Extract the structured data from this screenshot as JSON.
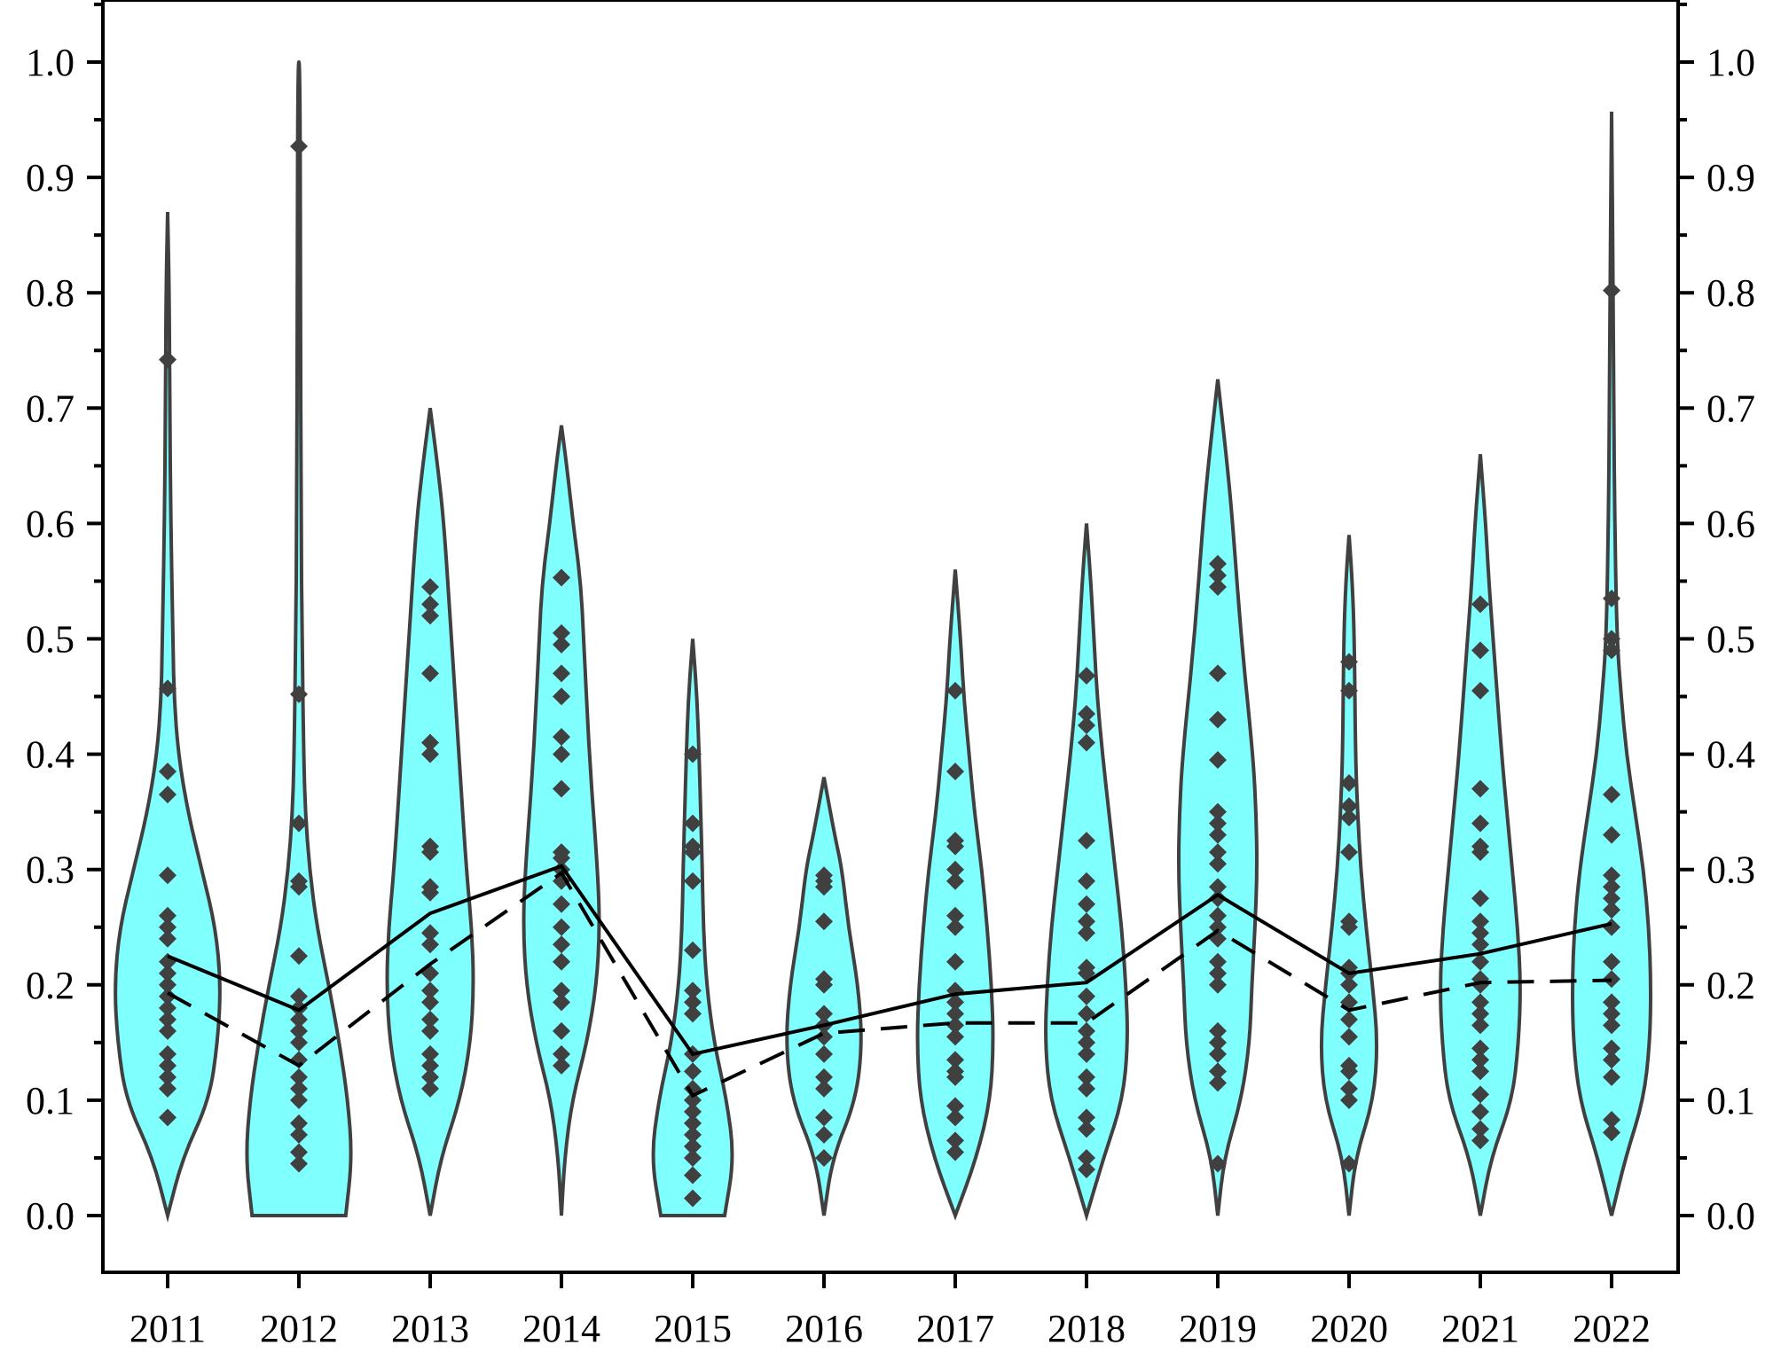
{
  "chart_data": {
    "type": "violin",
    "title": "",
    "xlabel": "",
    "ylabel": "",
    "ylim": [
      -0.05,
      1.05
    ],
    "y_ticks": [
      "0.0",
      "0.1",
      "0.2",
      "0.3",
      "0.4",
      "0.5",
      "0.6",
      "0.7",
      "0.8",
      "0.9",
      "1.0"
    ],
    "y_tick_values": [
      0.0,
      0.1,
      0.2,
      0.3,
      0.4,
      0.5,
      0.6,
      0.7,
      0.8,
      0.9,
      1.0
    ],
    "categories": [
      "2011",
      "2012",
      "2013",
      "2014",
      "2015",
      "2016",
      "2017",
      "2018",
      "2019",
      "2020",
      "2021",
      "2022"
    ],
    "violin_fill": "#80ffff",
    "violin_edge": "#404040",
    "point_color": "#404040",
    "violins": [
      {
        "year": "2011",
        "max": 0.87,
        "profile": [
          [
            0,
            0
          ],
          [
            0.05,
            0.14
          ],
          [
            0.1,
            0.39
          ],
          [
            0.15,
            0.47
          ],
          [
            0.2,
            0.5
          ],
          [
            0.25,
            0.45
          ],
          [
            0.3,
            0.32
          ],
          [
            0.35,
            0.19
          ],
          [
            0.4,
            0.1
          ],
          [
            0.45,
            0.06
          ],
          [
            0.5,
            0.05
          ],
          [
            0.6,
            0.03
          ],
          [
            0.7,
            0.02
          ],
          [
            0.8,
            0.015
          ],
          [
            0.87,
            0
          ]
        ],
        "points": [
          0.085,
          0.11,
          0.12,
          0.13,
          0.14,
          0.16,
          0.17,
          0.18,
          0.19,
          0.2,
          0.21,
          0.22,
          0.24,
          0.25,
          0.26,
          0.295,
          0.365,
          0.385,
          0.457,
          0.742
        ]
      },
      {
        "year": "2012",
        "max": 1.0,
        "profile": [
          [
            0,
            0.44
          ],
          [
            0.05,
            0.5
          ],
          [
            0.1,
            0.46
          ],
          [
            0.15,
            0.38
          ],
          [
            0.2,
            0.28
          ],
          [
            0.25,
            0.17
          ],
          [
            0.3,
            0.1
          ],
          [
            0.35,
            0.06
          ],
          [
            0.4,
            0.045
          ],
          [
            0.5,
            0.03
          ],
          [
            0.6,
            0.02
          ],
          [
            0.8,
            0.015
          ],
          [
            1.0,
            0.01
          ]
        ],
        "points": [
          0.045,
          0.055,
          0.07,
          0.08,
          0.1,
          0.11,
          0.12,
          0.135,
          0.15,
          0.16,
          0.17,
          0.18,
          0.19,
          0.225,
          0.285,
          0.29,
          0.34,
          0.452,
          0.927
        ]
      },
      {
        "year": "2013",
        "max": 0.7,
        "profile": [
          [
            0,
            0
          ],
          [
            0.05,
            0.1
          ],
          [
            0.1,
            0.28
          ],
          [
            0.15,
            0.38
          ],
          [
            0.2,
            0.41
          ],
          [
            0.25,
            0.39
          ],
          [
            0.3,
            0.34
          ],
          [
            0.4,
            0.27
          ],
          [
            0.5,
            0.2
          ],
          [
            0.6,
            0.13
          ],
          [
            0.65,
            0.07
          ],
          [
            0.7,
            0
          ]
        ],
        "points": [
          0.11,
          0.12,
          0.13,
          0.14,
          0.16,
          0.17,
          0.185,
          0.195,
          0.21,
          0.235,
          0.245,
          0.28,
          0.285,
          0.315,
          0.32,
          0.4,
          0.41,
          0.47,
          0.52,
          0.53,
          0.545
        ]
      },
      {
        "year": "2014",
        "max": 0.685,
        "profile": [
          [
            0,
            0
          ],
          [
            0.05,
            0.03
          ],
          [
            0.1,
            0.1
          ],
          [
            0.15,
            0.24
          ],
          [
            0.2,
            0.33
          ],
          [
            0.25,
            0.36
          ],
          [
            0.3,
            0.34
          ],
          [
            0.4,
            0.26
          ],
          [
            0.5,
            0.21
          ],
          [
            0.55,
            0.18
          ],
          [
            0.6,
            0.11
          ],
          [
            0.65,
            0.05
          ],
          [
            0.685,
            0
          ]
        ],
        "points": [
          0.13,
          0.14,
          0.16,
          0.185,
          0.195,
          0.22,
          0.235,
          0.25,
          0.27,
          0.29,
          0.3,
          0.31,
          0.315,
          0.37,
          0.4,
          0.415,
          0.45,
          0.47,
          0.495,
          0.505,
          0.553
        ]
      },
      {
        "year": "2015",
        "max": 0.5,
        "profile": [
          [
            0,
            0.3
          ],
          [
            0.05,
            0.39
          ],
          [
            0.1,
            0.32
          ],
          [
            0.15,
            0.2
          ],
          [
            0.2,
            0.13
          ],
          [
            0.25,
            0.1
          ],
          [
            0.3,
            0.09
          ],
          [
            0.35,
            0.075
          ],
          [
            0.4,
            0.06
          ],
          [
            0.45,
            0.04
          ],
          [
            0.5,
            0
          ]
        ],
        "points": [
          0.015,
          0.035,
          0.05,
          0.06,
          0.07,
          0.08,
          0.09,
          0.1,
          0.11,
          0.125,
          0.14,
          0.175,
          0.185,
          0.195,
          0.23,
          0.29,
          0.315,
          0.32,
          0.34,
          0.4
        ]
      },
      {
        "year": "2016",
        "max": 0.38,
        "profile": [
          [
            0,
            0
          ],
          [
            0.05,
            0.08
          ],
          [
            0.1,
            0.3
          ],
          [
            0.15,
            0.36
          ],
          [
            0.2,
            0.32
          ],
          [
            0.25,
            0.23
          ],
          [
            0.3,
            0.17
          ],
          [
            0.33,
            0.1
          ],
          [
            0.38,
            0
          ]
        ],
        "points": [
          0.05,
          0.07,
          0.085,
          0.11,
          0.12,
          0.14,
          0.155,
          0.165,
          0.175,
          0.2,
          0.205,
          0.255,
          0.285,
          0.29,
          0.295
        ]
      },
      {
        "year": "2017",
        "max": 0.56,
        "profile": [
          [
            0,
            0
          ],
          [
            0.05,
            0.2
          ],
          [
            0.1,
            0.33
          ],
          [
            0.15,
            0.36
          ],
          [
            0.2,
            0.34
          ],
          [
            0.25,
            0.3
          ],
          [
            0.3,
            0.25
          ],
          [
            0.35,
            0.18
          ],
          [
            0.4,
            0.13
          ],
          [
            0.45,
            0.08
          ],
          [
            0.5,
            0.05
          ],
          [
            0.56,
            0
          ]
        ],
        "points": [
          0.055,
          0.065,
          0.085,
          0.095,
          0.12,
          0.125,
          0.135,
          0.155,
          0.165,
          0.175,
          0.185,
          0.195,
          0.22,
          0.25,
          0.26,
          0.29,
          0.3,
          0.32,
          0.325,
          0.385,
          0.455
        ]
      },
      {
        "year": "2018",
        "max": 0.6,
        "profile": [
          [
            0,
            0
          ],
          [
            0.05,
            0.16
          ],
          [
            0.1,
            0.34
          ],
          [
            0.15,
            0.39
          ],
          [
            0.2,
            0.37
          ],
          [
            0.25,
            0.33
          ],
          [
            0.3,
            0.27
          ],
          [
            0.35,
            0.21
          ],
          [
            0.4,
            0.15
          ],
          [
            0.45,
            0.1
          ],
          [
            0.5,
            0.07
          ],
          [
            0.55,
            0.04
          ],
          [
            0.6,
            0
          ]
        ],
        "points": [
          0.04,
          0.05,
          0.075,
          0.085,
          0.11,
          0.12,
          0.14,
          0.15,
          0.16,
          0.175,
          0.19,
          0.21,
          0.215,
          0.245,
          0.255,
          0.27,
          0.29,
          0.325,
          0.41,
          0.425,
          0.435,
          0.468
        ]
      },
      {
        "year": "2019",
        "max": 0.725,
        "profile": [
          [
            0,
            0
          ],
          [
            0.05,
            0.06
          ],
          [
            0.1,
            0.22
          ],
          [
            0.15,
            0.3
          ],
          [
            0.2,
            0.32
          ],
          [
            0.25,
            0.35
          ],
          [
            0.3,
            0.37
          ],
          [
            0.35,
            0.36
          ],
          [
            0.4,
            0.33
          ],
          [
            0.5,
            0.22
          ],
          [
            0.6,
            0.14
          ],
          [
            0.65,
            0.09
          ],
          [
            0.725,
            0
          ]
        ],
        "points": [
          0.045,
          0.115,
          0.125,
          0.14,
          0.15,
          0.16,
          0.2,
          0.21,
          0.22,
          0.24,
          0.25,
          0.26,
          0.275,
          0.285,
          0.305,
          0.315,
          0.33,
          0.34,
          0.35,
          0.395,
          0.43,
          0.47,
          0.545,
          0.555,
          0.565
        ]
      },
      {
        "year": "2020",
        "max": 0.59,
        "profile": [
          [
            0,
            0
          ],
          [
            0.05,
            0.06
          ],
          [
            0.1,
            0.23
          ],
          [
            0.15,
            0.27
          ],
          [
            0.2,
            0.22
          ],
          [
            0.25,
            0.16
          ],
          [
            0.3,
            0.11
          ],
          [
            0.35,
            0.08
          ],
          [
            0.4,
            0.06
          ],
          [
            0.5,
            0.05
          ],
          [
            0.55,
            0.03
          ],
          [
            0.59,
            0
          ]
        ],
        "points": [
          0.045,
          0.1,
          0.11,
          0.125,
          0.13,
          0.155,
          0.17,
          0.185,
          0.2,
          0.21,
          0.215,
          0.25,
          0.255,
          0.315,
          0.345,
          0.355,
          0.375,
          0.455,
          0.48
        ]
      },
      {
        "year": "2021",
        "max": 0.66,
        "profile": [
          [
            0,
            0
          ],
          [
            0.05,
            0.1
          ],
          [
            0.1,
            0.3
          ],
          [
            0.15,
            0.36
          ],
          [
            0.2,
            0.38
          ],
          [
            0.25,
            0.35
          ],
          [
            0.3,
            0.3
          ],
          [
            0.35,
            0.25
          ],
          [
            0.4,
            0.2
          ],
          [
            0.5,
            0.12
          ],
          [
            0.55,
            0.08
          ],
          [
            0.6,
            0.05
          ],
          [
            0.66,
            0
          ]
        ],
        "points": [
          0.065,
          0.075,
          0.09,
          0.105,
          0.125,
          0.135,
          0.145,
          0.165,
          0.175,
          0.185,
          0.2,
          0.205,
          0.22,
          0.235,
          0.245,
          0.255,
          0.275,
          0.315,
          0.32,
          0.34,
          0.37,
          0.455,
          0.49,
          0.53
        ]
      },
      {
        "year": "2022",
        "max": 0.957,
        "profile": [
          [
            0,
            0
          ],
          [
            0.05,
            0.13
          ],
          [
            0.1,
            0.3
          ],
          [
            0.15,
            0.36
          ],
          [
            0.2,
            0.37
          ],
          [
            0.25,
            0.35
          ],
          [
            0.3,
            0.3
          ],
          [
            0.35,
            0.22
          ],
          [
            0.4,
            0.14
          ],
          [
            0.45,
            0.09
          ],
          [
            0.5,
            0.05
          ],
          [
            0.6,
            0.03
          ],
          [
            0.7,
            0.02
          ],
          [
            0.8,
            0.015
          ],
          [
            0.957,
            0
          ]
        ],
        "points": [
          0.072,
          0.083,
          0.12,
          0.135,
          0.145,
          0.165,
          0.175,
          0.185,
          0.205,
          0.22,
          0.25,
          0.265,
          0.275,
          0.285,
          0.295,
          0.33,
          0.365,
          0.49,
          0.5,
          0.535,
          0.802
        ]
      }
    ],
    "series": [
      {
        "style": "solid",
        "values": [
          0.225,
          0.178,
          0.262,
          0.303,
          0.14,
          0.165,
          0.192,
          0.202,
          0.278,
          0.21,
          0.227,
          0.253
        ]
      },
      {
        "style": "dashed",
        "values": [
          0.193,
          0.13,
          0.218,
          0.297,
          0.104,
          0.158,
          0.167,
          0.167,
          0.247,
          0.178,
          0.202,
          0.204
        ]
      }
    ],
    "grid": false,
    "legend": "none"
  }
}
